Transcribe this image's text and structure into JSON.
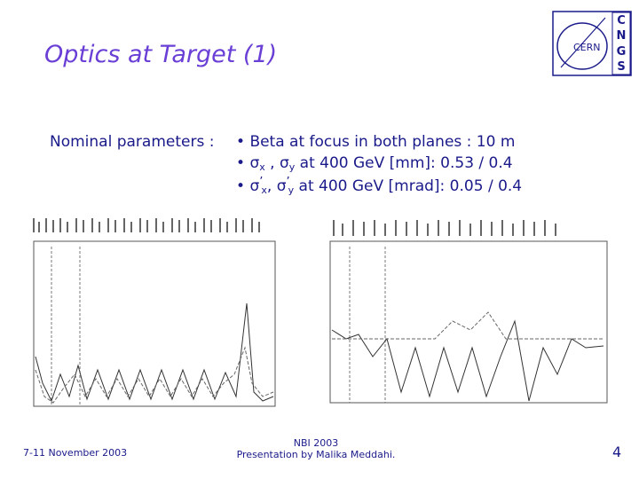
{
  "header": {
    "title": "Optics at Target (1)",
    "logo": {
      "name": "CERN",
      "letters": [
        "C",
        "N",
        "G",
        "S"
      ]
    }
  },
  "body": {
    "label": "Nominal parameters :",
    "bullets": [
      {
        "parts": [
          "•",
          "Beta at focus in both planes : 10 m"
        ]
      },
      {
        "parts": [
          "•",
          "σ",
          "x",
          " , ",
          "σ",
          "y",
          " at 400 GeV [mm]: 0.53 / 0.4"
        ]
      },
      {
        "parts": [
          "•",
          "σ",
          "’",
          "x",
          ", ",
          "σ",
          "’",
          "y",
          " at 400 GeV [mrad]: 0.05 / 0.4"
        ]
      }
    ]
  },
  "footer": {
    "date": "7-11 November 2003",
    "event": "NBI 2003",
    "presenter": "Presentation by Malika Meddahi.",
    "page": "4"
  }
}
